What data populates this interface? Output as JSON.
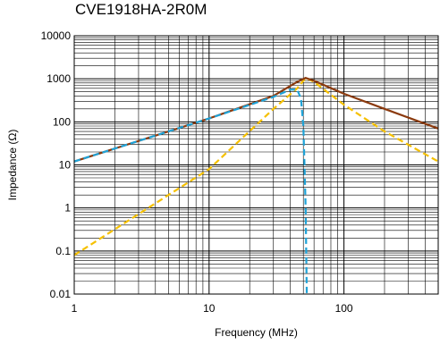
{
  "chart_data": {
    "type": "line",
    "title": "CVE1918HA-2R0M",
    "xlabel": "Frequency (MHz)",
    "ylabel": "Impedance (Ω)",
    "x_scale": "log",
    "y_scale": "log",
    "xlim": [
      1,
      500
    ],
    "ylim": [
      0.01,
      10000
    ],
    "x_tick_labels": [
      {
        "value": 1,
        "label": "1"
      },
      {
        "value": 10,
        "label": "10"
      },
      {
        "value": 100,
        "label": "100"
      }
    ],
    "y_tick_labels": [
      {
        "value": 10000,
        "label": "10000"
      },
      {
        "value": 1000,
        "label": "1000"
      },
      {
        "value": 100,
        "label": "100"
      },
      {
        "value": 10,
        "label": "10"
      },
      {
        "value": 1,
        "label": "1"
      },
      {
        "value": 0.1,
        "label": "0.1"
      },
      {
        "value": 0.01,
        "label": "0.01"
      }
    ],
    "grid": true,
    "legend": "none",
    "series": [
      {
        "color": "#8b3a0e",
        "style": "solid",
        "points": [
          [
            1,
            12
          ],
          [
            10,
            120
          ],
          [
            30,
            400
          ],
          [
            45,
            850
          ],
          [
            52,
            1050
          ],
          [
            60,
            900
          ],
          [
            100,
            450
          ],
          [
            200,
            200
          ],
          [
            500,
            70
          ]
        ]
      },
      {
        "color": "#1fa3d8",
        "style": "dashed",
        "points": [
          [
            1,
            12
          ],
          [
            10,
            120
          ],
          [
            30,
            380
          ],
          [
            40,
            560
          ],
          [
            45,
            560
          ],
          [
            48,
            350
          ],
          [
            50,
            80
          ],
          [
            51,
            10
          ],
          [
            52,
            1
          ],
          [
            53,
            0.01
          ]
        ]
      },
      {
        "color": "#f5c000",
        "style": "dashed",
        "points": [
          [
            1,
            0.08
          ],
          [
            10,
            8
          ],
          [
            30,
            200
          ],
          [
            45,
            600
          ],
          [
            52,
            1050
          ],
          [
            60,
            850
          ],
          [
            100,
            250
          ],
          [
            200,
            60
          ],
          [
            500,
            12
          ]
        ]
      }
    ]
  }
}
